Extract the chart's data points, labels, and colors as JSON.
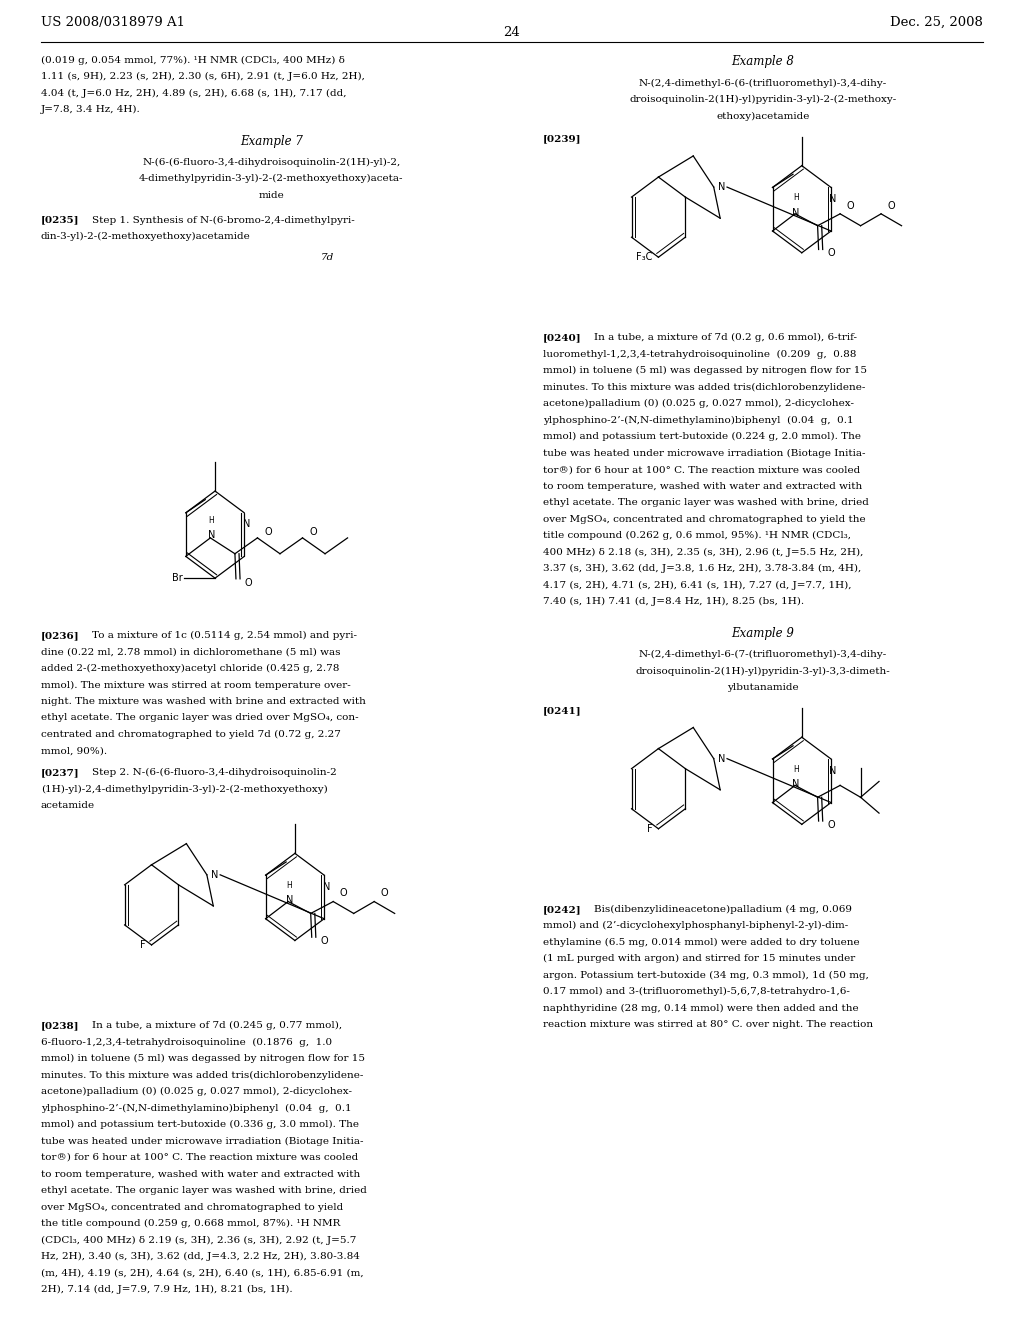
{
  "page_number": "24",
  "header_left": "US 2008/0318979 A1",
  "header_right": "Dec. 25, 2008",
  "background_color": "#ffffff",
  "text_color": "#000000",
  "font_size_body": 7.5,
  "font_size_example": 8.5,
  "font_size_header": 9.5,
  "left_col_top_text": [
    "(0.019 g, 0.054 mmol, 77%). ¹H NMR (CDCl₃, 400 MHz) δ",
    "1.11 (s, 9H), 2.23 (s, 2H), 2.30 (s, 6H), 2.91 (t, J=6.0 Hz, 2H),",
    "4.04 (t, J=6.0 Hz, 2H), 4.89 (s, 2H), 6.68 (s, 1H), 7.17 (dd,",
    "J=7.8, 3.4 Hz, 4H)."
  ],
  "example7_title": "Example 7",
  "example7_name": [
    "N-(6-(6-fluoro-3,4-dihydroisoquinolin-2(1H)-yl)-2,",
    "4-dimethylpyridin-3-yl)-2-(2-methoxyethoxy)aceta-",
    "mide"
  ],
  "para0235_label": "[0235]",
  "para0235_text": [
    "Step 1. Synthesis of N-(6-bromo-2,4-dimethylpyri-",
    "din-3-yl)-2-(2-methoxyethoxy)acetamide"
  ],
  "label_7d": "7d",
  "para0236_label": "[0236]",
  "para0236_text": [
    "To a mixture of 1c (0.5114 g, 2.54 mmol) and pyri-",
    "dine (0.22 ml, 2.78 mmol) in dichloromethane (5 ml) was",
    "added 2-(2-methoxyethoxy)acetyl chloride (0.425 g, 2.78",
    "mmol). The mixture was stirred at room temperature over-",
    "night. The mixture was washed with brine and extracted with",
    "ethyl acetate. The organic layer was dried over MgSO₄, con-",
    "centrated and chromatographed to yield 7d (0.72 g, 2.27",
    "mmol, 90%)."
  ],
  "para0237_label": "[0237]",
  "para0237_text": [
    "Step 2. N-(6-(6-fluoro-3,4-dihydroisoquinolin-2",
    "(1H)-yl)-2,4-dimethylpyridin-3-yl)-2-(2-methoxyethoxy)",
    "acetamide"
  ],
  "para0238_label": "[0238]",
  "para0238_text": [
    "In a tube, a mixture of 7d (0.245 g, 0.77 mmol),",
    "6-fluoro-1,2,3,4-tetrahydroisoquinoline  (0.1876  g,  1.0",
    "mmol) in toluene (5 ml) was degassed by nitrogen flow for 15",
    "minutes. To this mixture was added tris(dichlorobenzylidene-",
    "acetone)palladium (0) (0.025 g, 0.027 mmol), 2-dicyclohex-",
    "ylphosphino-2’-(N,N-dimethylamino)biphenyl  (0.04  g,  0.1",
    "mmol) and potassium tert-butoxide (0.336 g, 3.0 mmol). The",
    "tube was heated under microwave irradiation (Biotage Initia-",
    "tor®) for 6 hour at 100° C. The reaction mixture was cooled",
    "to room temperature, washed with water and extracted with",
    "ethyl acetate. The organic layer was washed with brine, dried",
    "over MgSO₄, concentrated and chromatographed to yield",
    "the title compound (0.259 g, 0.668 mmol, 87%). ¹H NMR",
    "(CDCl₃, 400 MHz) δ 2.19 (s, 3H), 2.36 (s, 3H), 2.92 (t, J=5.7",
    "Hz, 2H), 3.40 (s, 3H), 3.62 (dd, J=4.3, 2.2 Hz, 2H), 3.80-3.84",
    "(m, 4H), 4.19 (s, 2H), 4.64 (s, 2H), 6.40 (s, 1H), 6.85-6.91 (m,",
    "2H), 7.14 (dd, J=7.9, 7.9 Hz, 1H), 8.21 (bs, 1H)."
  ],
  "example8_title": "Example 8",
  "example8_name": [
    "N-(2,4-dimethyl-6-(6-(trifluoromethyl)-3,4-dihy-",
    "droisoquinolin-2(1H)-yl)pyridin-3-yl)-2-(2-methoxy-",
    "ethoxy)acetamide"
  ],
  "para0239_label": "[0239]",
  "para0240_label": "[0240]",
  "para0240_text": [
    "In a tube, a mixture of 7d (0.2 g, 0.6 mmol), 6-trif-",
    "luoromethyl-1,2,3,4-tetrahydroisoquinoline  (0.209  g,  0.88",
    "mmol) in toluene (5 ml) was degassed by nitrogen flow for 15",
    "minutes. To this mixture was added tris(dichlorobenzylidene-",
    "acetone)palladium (0) (0.025 g, 0.027 mmol), 2-dicyclohex-",
    "ylphosphino-2’-(N,N-dimethylamino)biphenyl  (0.04  g,  0.1",
    "mmol) and potassium tert-butoxide (0.224 g, 2.0 mmol). The",
    "tube was heated under microwave irradiation (Biotage Initia-",
    "tor®) for 6 hour at 100° C. The reaction mixture was cooled",
    "to room temperature, washed with water and extracted with",
    "ethyl acetate. The organic layer was washed with brine, dried",
    "over MgSO₄, concentrated and chromatographed to yield the",
    "title compound (0.262 g, 0.6 mmol, 95%). ¹H NMR (CDCl₃,",
    "400 MHz) δ 2.18 (s, 3H), 2.35 (s, 3H), 2.96 (t, J=5.5 Hz, 2H),",
    "3.37 (s, 3H), 3.62 (dd, J=3.8, 1.6 Hz, 2H), 3.78-3.84 (m, 4H),",
    "4.17 (s, 2H), 4.71 (s, 2H), 6.41 (s, 1H), 7.27 (d, J=7.7, 1H),",
    "7.40 (s, 1H) 7.41 (d, J=8.4 Hz, 1H), 8.25 (bs, 1H)."
  ],
  "example9_title": "Example 9",
  "example9_name": [
    "N-(2,4-dimethyl-6-(7-(trifluoromethyl)-3,4-dihy-",
    "droisoquinolin-2(1H)-yl)pyridin-3-yl)-3,3-dimeth-",
    "ylbutanamide"
  ],
  "para0241_label": "[0241]",
  "para0242_label": "[0242]",
  "para0242_text": [
    "Bis(dibenzylidineacetone)palladium (4 mg, 0.069",
    "mmol) and (2’-dicyclohexylphosphanyl-biphenyl-2-yl)-dim-",
    "ethylamine (6.5 mg, 0.014 mmol) were added to dry toluene",
    "(1 mL purged with argon) and stirred for 15 minutes under",
    "argon. Potassium tert-butoxide (34 mg, 0.3 mmol), 1d (50 mg,",
    "0.17 mmol) and 3-(trifluoromethyl)-5,6,7,8-tetrahydro-1,6-",
    "naphthyridine (28 mg, 0.14 mmol) were then added and the",
    "reaction mixture was stirred at 80° C. over night. The reaction"
  ]
}
